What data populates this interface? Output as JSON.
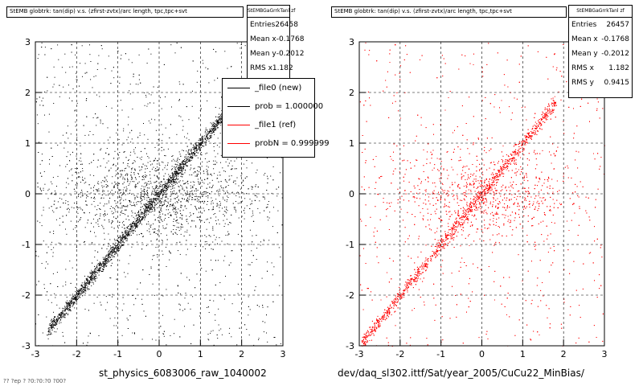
{
  "colors": {
    "panel_left_points": "#000000",
    "panel_right_points": "#ff0000",
    "grid": "#000000"
  },
  "panels": [
    {
      "header": "StEMB globtrk: tan(dip) v.s. (zfirst-zvtx)/arc length, tpc,tpc+svt",
      "stats": {
        "name": "StEMBGaGrrkTanl zf",
        "rows": [
          {
            "label": "Entries",
            "value": "26458"
          },
          {
            "label": "Mean x",
            "value": "-0.1768"
          },
          {
            "label": "Mean y",
            "value": "-0.2012"
          },
          {
            "label": "RMS x",
            "value": "1.182"
          }
        ]
      },
      "xtitle": "st_physics_6083006_raw_1040002"
    },
    {
      "header": "StEMB globtrk: tan(dip) v.s. (zfirst-zvtx)/arc length, tpc,tpc+svt",
      "stats": {
        "name": "StEMBGaGrrkTanl zf",
        "rows": [
          {
            "label": "Entries",
            "value": "26457"
          },
          {
            "label": "Mean x",
            "value": "-0.1768"
          },
          {
            "label": "Mean y",
            "value": "-0.2012"
          },
          {
            "label": "RMS x",
            "value": "1.182"
          },
          {
            "label": "RMS y",
            "value": "0.9415"
          }
        ]
      },
      "xtitle": "dev/daq_sl302.ittf/Sat/year_2005/CuCu22_MinBias/"
    }
  ],
  "legend": {
    "items": [
      {
        "label": "_file0 (new)",
        "color": "#000000"
      },
      {
        "label": "prob = 1.000000",
        "color": "#000000"
      },
      {
        "label": "_file1 (ref)",
        "color": "#ff0000"
      },
      {
        "label": "probN = 0.999999",
        "color": "#ff0000"
      }
    ]
  },
  "bottom_left_clip": "?? ?ep  ? ?0:?0:?0 ?00?",
  "chart_data": [
    {
      "type": "scatter",
      "title": "StEMB globtrk: tan(dip) v.s. (zfirst-zvtx)/arc length, tpc,tpc+svt",
      "xlabel": "st_physics_6083006_raw_1040002",
      "ylabel": "",
      "xlim": [
        -3,
        3
      ],
      "ylim": [
        -3,
        3
      ],
      "grid": true,
      "xticks": [
        -3,
        -2,
        -1,
        0,
        1,
        2,
        3
      ],
      "yticks": [
        -3,
        -2,
        -1,
        0,
        1,
        2,
        3
      ],
      "xtick_labels": [
        "-3",
        "-2",
        "-1",
        "0",
        "1",
        "2",
        "3"
      ],
      "ytick_labels": [
        "-3",
        "-2",
        "-1",
        "0",
        "1",
        "2",
        "3"
      ],
      "series": [
        {
          "name": "_file0 (new)",
          "color": "#000000",
          "entries": 26458,
          "mean_x": -0.1768,
          "mean_y": -0.2012,
          "rms_x": 1.182,
          "correlation": "diagonal band y≈x from (-2.6,-2.6) to (1.5,1.5)"
        }
      ],
      "legend": "top-right"
    },
    {
      "type": "scatter",
      "title": "StEMB globtrk: tan(dip) v.s. (zfirst-zvtx)/arc length, tpc,tpc+svt",
      "xlabel": "dev/daq_sl302.ittf/Sat/year_2005/CuCu22_MinBias/",
      "ylabel": "",
      "xlim": [
        -3,
        3
      ],
      "ylim": [
        -3,
        3
      ],
      "grid": true,
      "xticks": [
        -3,
        -2,
        -1,
        0,
        1,
        2,
        3
      ],
      "yticks": [
        -3,
        -2,
        -1,
        0,
        1,
        2,
        3
      ],
      "xtick_labels": [
        "-3",
        "-2",
        "-1",
        "0",
        "1",
        "2",
        "3"
      ],
      "ytick_labels": [
        "-3",
        "-2",
        "-1",
        "0",
        "1",
        "2",
        "3"
      ],
      "series": [
        {
          "name": "_file1 (ref)",
          "color": "#ff0000",
          "entries": 26457,
          "mean_x": -0.1768,
          "mean_y": -0.2012,
          "rms_x": 1.182,
          "rms_y": 0.9415,
          "correlation": "diagonal band y≈x from (-2.9,-2.9) to (1.5,1.8)"
        }
      ]
    }
  ]
}
